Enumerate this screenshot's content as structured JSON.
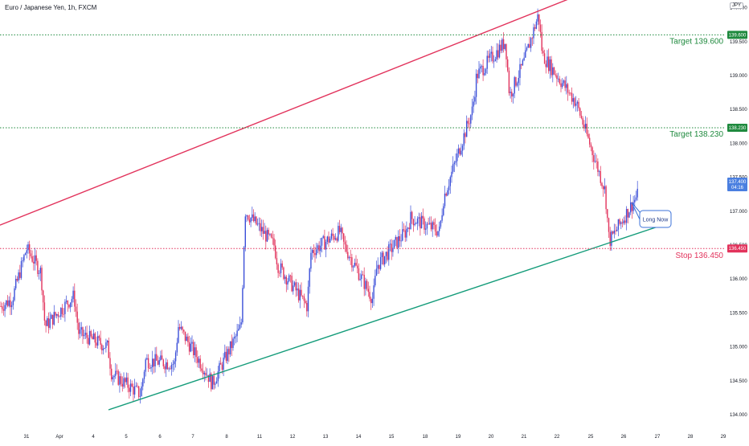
{
  "header": {
    "symbol_title": "Euro / Japanese Yen, 1h, FXCM",
    "currency": "JPY"
  },
  "colors": {
    "up": "#3b4fd8",
    "down": "#e2335c",
    "channel_upper": "#e2335c",
    "channel_lower": "#149c7a",
    "target": "#1f8a3e",
    "stop": "#e2335c",
    "callout_border": "#3b72d9",
    "current_price": "#4a7fe0"
  },
  "chart_data": {
    "type": "candlestick",
    "title": "Euro / Japanese Yen, 1h, FXCM",
    "ylim": [
      133.83,
      140.52
    ],
    "y_ticks": [
      "134.000",
      "134.500",
      "135.000",
      "135.500",
      "136.000",
      "136.500",
      "137.000",
      "137.500",
      "138.000",
      "138.500",
      "139.000",
      "139.500",
      "140.000"
    ],
    "x_ticks": [
      "31",
      "Apr",
      "4",
      "5",
      "6",
      "7",
      "8",
      "11",
      "12",
      "13",
      "14",
      "15",
      "18",
      "19",
      "20",
      "21",
      "22",
      "25",
      "26",
      "27",
      "28",
      "29"
    ],
    "price_path": [
      [
        "31",
        135.7
      ],
      [
        "31",
        136.45
      ],
      [
        "31",
        136.1
      ],
      [
        "Apr",
        135.3
      ],
      [
        "Apr",
        135.75
      ],
      [
        "4",
        135.2
      ],
      [
        "4",
        135.0
      ],
      [
        "5",
        134.6
      ],
      [
        "5",
        134.3
      ],
      [
        "6",
        134.8
      ],
      [
        "6",
        134.75
      ],
      [
        "7",
        135.3
      ],
      [
        "7",
        134.6
      ],
      [
        "8",
        134.45
      ],
      [
        "8",
        135.3
      ],
      [
        "11",
        137.0
      ],
      [
        "11",
        136.5
      ],
      [
        "12",
        136.2
      ],
      [
        "12",
        135.6
      ],
      [
        "13",
        136.4
      ],
      [
        "13",
        136.7
      ],
      [
        "14",
        136.5
      ],
      [
        "14",
        135.7
      ],
      [
        "15",
        136.2
      ],
      [
        "15",
        136.7
      ],
      [
        "18",
        136.9
      ],
      [
        "18",
        136.7
      ],
      [
        "19",
        137.2
      ],
      [
        "19",
        138.5
      ],
      [
        "20",
        139.0
      ],
      [
        "20",
        139.5
      ],
      [
        "21",
        138.7
      ],
      [
        "21",
        139.2
      ],
      [
        "21",
        139.9
      ],
      [
        "22",
        139.3
      ],
      [
        "22",
        138.7
      ],
      [
        "25",
        138.6
      ],
      [
        "25",
        137.3
      ],
      [
        "26",
        136.55
      ],
      [
        "26",
        137.25
      ]
    ],
    "levels": [
      {
        "label": "Target 139.600",
        "value": 139.6,
        "tag": "139.600",
        "color": "#1f8a3e"
      },
      {
        "label": "Target 138.230",
        "value": 138.23,
        "tag": "138.230",
        "color": "#1f8a3e"
      },
      {
        "label": "Stop 136.450",
        "value": 136.45,
        "tag": "136.450",
        "color": "#e2335c"
      }
    ],
    "current_price": {
      "value": 137.4,
      "tag": "137.400",
      "timer": "04:16"
    },
    "top_clipped_tick": "140.500",
    "channel": {
      "upper": [
        [
          "31",
          136.95
        ],
        [
          "26",
          140.45
        ]
      ],
      "lower": [
        [
          "Apr",
          133.83
        ],
        [
          "27",
          136.77
        ]
      ]
    },
    "annotation": {
      "text": "Long Now"
    },
    "grid": false,
    "legend": "none"
  }
}
